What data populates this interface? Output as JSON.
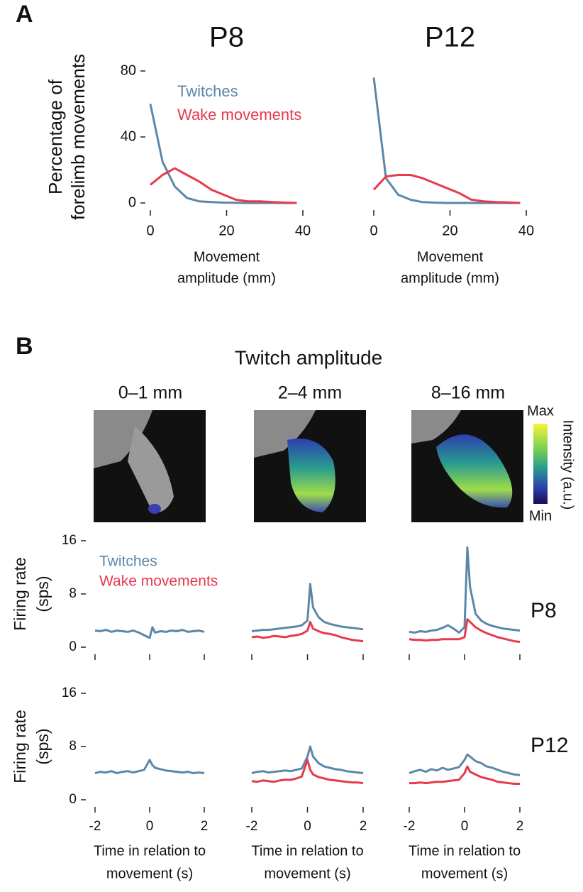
{
  "panel_labels": [
    "A",
    "B"
  ],
  "panel_b": {
    "title": "Twitch amplitude",
    "columns": [
      "0–1 mm",
      "2–4 mm",
      "8–16 mm"
    ],
    "colorbar": {
      "max": "Max",
      "min": "Min",
      "label": "Intensity (a.u.)"
    },
    "row_labels": [
      "P8",
      "P12"
    ]
  },
  "chart_data": [
    {
      "type": "line",
      "title": "P8",
      "ylabel": [
        "Percentage of",
        "forelimb movements"
      ],
      "xlabel": [
        "Movement",
        "amplitude (mm)"
      ],
      "x": [
        0,
        3.2,
        6.4,
        9.6,
        12.8,
        16,
        19.2,
        22.4,
        25.6,
        28.8,
        32,
        35.2,
        38.4
      ],
      "series": [
        {
          "name": "Twitches",
          "color": "#5b87a9",
          "values": [
            60,
            25,
            10,
            3,
            1,
            0.5,
            0.2,
            0.1,
            0,
            0,
            0,
            0,
            0
          ]
        },
        {
          "name": "Wake movements",
          "color": "#e8394d",
          "values": [
            11,
            17,
            21,
            17,
            13,
            8,
            5,
            2,
            1,
            1,
            0.5,
            0.2,
            0
          ]
        }
      ],
      "xlim": [
        0,
        40
      ],
      "ylim": [
        0,
        80
      ],
      "xticks": [
        0,
        20,
        40
      ],
      "yticks": [
        0,
        40,
        80
      ],
      "legend": true
    },
    {
      "type": "line",
      "title": "P12",
      "xlabel": [
        "Movement",
        "amplitude (mm)"
      ],
      "x": [
        0,
        3.2,
        6.4,
        9.6,
        12.8,
        16,
        19.2,
        22.4,
        25.6,
        28.8,
        32,
        35.2,
        38.4
      ],
      "series": [
        {
          "color": "#5b87a9",
          "values": [
            76,
            15,
            5,
            2,
            0.5,
            0.2,
            0,
            0,
            0,
            0,
            0,
            0,
            0
          ]
        },
        {
          "color": "#e8394d",
          "values": [
            8,
            16,
            17,
            17,
            15,
            12,
            9,
            6,
            2,
            1,
            0.5,
            0.3,
            0
          ]
        }
      ],
      "xlim": [
        0,
        40
      ],
      "ylim": [
        0,
        80
      ],
      "xticks": [
        0,
        20,
        40
      ]
    },
    {
      "type": "line",
      "ylabel": [
        "Firing rate",
        "(sps)"
      ],
      "x": [
        -2,
        -1.8,
        -1.6,
        -1.4,
        -1.2,
        -1,
        -0.8,
        -0.6,
        -0.4,
        -0.2,
        0,
        0.1,
        0.2,
        0.4,
        0.6,
        0.8,
        1,
        1.2,
        1.4,
        1.6,
        1.8,
        2
      ],
      "series": [
        {
          "color": "#5b87a9",
          "values": [
            2.5,
            2.4,
            2.6,
            2.3,
            2.5,
            2.4,
            2.3,
            2.5,
            2.2,
            1.8,
            1.4,
            3.0,
            2.2,
            2.4,
            2.3,
            2.5,
            2.4,
            2.6,
            2.3,
            2.4,
            2.5,
            2.3
          ]
        }
      ],
      "xlim": [
        -2,
        2
      ],
      "ylim": [
        0,
        16
      ],
      "xticks": [
        -2,
        0,
        2
      ],
      "yticks": [
        0,
        8,
        16
      ],
      "show_xtick_labels": false
    },
    {
      "type": "line",
      "x": [
        -2,
        -1.8,
        -1.6,
        -1.4,
        -1.2,
        -1,
        -0.8,
        -0.6,
        -0.4,
        -0.2,
        0,
        0.1,
        0.2,
        0.4,
        0.6,
        0.8,
        1,
        1.2,
        1.4,
        1.6,
        1.8,
        2
      ],
      "series": [
        {
          "name": "Twitches",
          "color": "#5b87a9",
          "values": [
            2.4,
            2.5,
            2.6,
            2.6,
            2.7,
            2.8,
            2.9,
            3.0,
            3.1,
            3.3,
            4,
            9.5,
            6,
            4.5,
            3.8,
            3.5,
            3.3,
            3.1,
            3.0,
            2.9,
            2.8,
            2.7
          ]
        },
        {
          "name": "Wake movements",
          "color": "#e8394d",
          "values": [
            1.5,
            1.6,
            1.4,
            1.5,
            1.7,
            1.6,
            1.5,
            1.7,
            1.8,
            2.0,
            2.5,
            3.8,
            2.8,
            2.4,
            2.1,
            2.0,
            1.8,
            1.5,
            1.3,
            1.1,
            1.0,
            0.9
          ]
        }
      ],
      "xlim": [
        -2,
        2
      ],
      "ylim": [
        0,
        16
      ],
      "xticks": [
        -2,
        0,
        2
      ],
      "show_xtick_labels": false,
      "legend": true
    },
    {
      "type": "line",
      "x": [
        -2,
        -1.8,
        -1.6,
        -1.4,
        -1.2,
        -1,
        -0.8,
        -0.6,
        -0.4,
        -0.2,
        0,
        0.1,
        0.2,
        0.4,
        0.6,
        0.8,
        1,
        1.2,
        1.4,
        1.6,
        1.8,
        2
      ],
      "series": [
        {
          "color": "#5b87a9",
          "values": [
            2.3,
            2.2,
            2.4,
            2.3,
            2.5,
            2.6,
            2.9,
            3.3,
            2.8,
            2.2,
            3,
            15,
            9,
            5,
            4,
            3.5,
            3.2,
            3.0,
            2.8,
            2.7,
            2.6,
            2.5
          ]
        },
        {
          "color": "#e8394d",
          "values": [
            1.2,
            1.1,
            1.1,
            1.0,
            1.1,
            1.1,
            1.2,
            1.2,
            1.2,
            1.2,
            1.5,
            4.2,
            3.8,
            3.0,
            2.5,
            2.1,
            1.8,
            1.5,
            1.3,
            1.1,
            0.9,
            0.8
          ]
        }
      ],
      "xlim": [
        -2,
        2
      ],
      "ylim": [
        0,
        16
      ],
      "xticks": [
        -2,
        0,
        2
      ],
      "show_xtick_labels": false
    },
    {
      "type": "line",
      "ylabel": [
        "Firing rate",
        "(sps)"
      ],
      "xlabel": [
        "Time in relation to",
        "movement (s)"
      ],
      "x": [
        -2,
        -1.8,
        -1.6,
        -1.4,
        -1.2,
        -1,
        -0.8,
        -0.6,
        -0.4,
        -0.2,
        0,
        0.1,
        0.2,
        0.4,
        0.6,
        0.8,
        1,
        1.2,
        1.4,
        1.6,
        1.8,
        2
      ],
      "series": [
        {
          "color": "#5b87a9",
          "values": [
            4.0,
            4.2,
            4.1,
            4.3,
            4.0,
            4.2,
            4.3,
            4.1,
            4.3,
            4.5,
            6.0,
            5.2,
            4.8,
            4.6,
            4.4,
            4.3,
            4.2,
            4.1,
            4.2,
            4.0,
            4.1,
            4.0
          ]
        }
      ],
      "xlim": [
        -2,
        2
      ],
      "ylim": [
        0,
        16
      ],
      "xticks": [
        -2,
        0,
        2
      ],
      "yticks": [
        0,
        8,
        16
      ]
    },
    {
      "type": "line",
      "xlabel": [
        "Time in relation to",
        "movement (s)"
      ],
      "x": [
        -2,
        -1.8,
        -1.6,
        -1.4,
        -1.2,
        -1,
        -0.8,
        -0.6,
        -0.4,
        -0.2,
        0,
        0.1,
        0.2,
        0.4,
        0.6,
        0.8,
        1,
        1.2,
        1.4,
        1.6,
        1.8,
        2
      ],
      "series": [
        {
          "color": "#5b87a9",
          "values": [
            4.0,
            4.2,
            4.3,
            4.1,
            4.2,
            4.3,
            4.4,
            4.3,
            4.5,
            4.7,
            6.5,
            8.0,
            6.5,
            5.5,
            5.0,
            4.8,
            4.6,
            4.5,
            4.3,
            4.2,
            4.1,
            4.0
          ]
        },
        {
          "color": "#e8394d",
          "values": [
            2.8,
            2.7,
            2.9,
            2.8,
            2.7,
            2.9,
            3.0,
            3.0,
            3.2,
            3.5,
            6.0,
            4.5,
            3.8,
            3.4,
            3.2,
            3.0,
            2.9,
            2.8,
            2.7,
            2.6,
            2.6,
            2.5
          ]
        }
      ],
      "xlim": [
        -2,
        2
      ],
      "ylim": [
        0,
        16
      ],
      "xticks": [
        -2,
        0,
        2
      ]
    },
    {
      "type": "line",
      "xlabel": [
        "Time in relation to",
        "movement (s)"
      ],
      "x": [
        -2,
        -1.8,
        -1.6,
        -1.4,
        -1.2,
        -1,
        -0.8,
        -0.6,
        -0.4,
        -0.2,
        0,
        0.1,
        0.2,
        0.4,
        0.6,
        0.8,
        1,
        1.2,
        1.4,
        1.6,
        1.8,
        2
      ],
      "series": [
        {
          "color": "#5b87a9",
          "values": [
            4.0,
            4.3,
            4.5,
            4.2,
            4.6,
            4.4,
            4.8,
            4.5,
            4.7,
            4.9,
            6.0,
            6.8,
            6.5,
            5.8,
            5.5,
            5.0,
            4.8,
            4.5,
            4.2,
            4.0,
            3.8,
            3.7
          ]
        },
        {
          "color": "#e8394d",
          "values": [
            2.5,
            2.5,
            2.6,
            2.5,
            2.6,
            2.7,
            2.7,
            2.8,
            2.9,
            3.0,
            4.0,
            5.0,
            4.2,
            3.8,
            3.4,
            3.2,
            3.0,
            2.7,
            2.6,
            2.5,
            2.4,
            2.4
          ]
        }
      ],
      "xlim": [
        -2,
        2
      ],
      "ylim": [
        0,
        16
      ],
      "xticks": [
        -2,
        0,
        2
      ]
    }
  ]
}
